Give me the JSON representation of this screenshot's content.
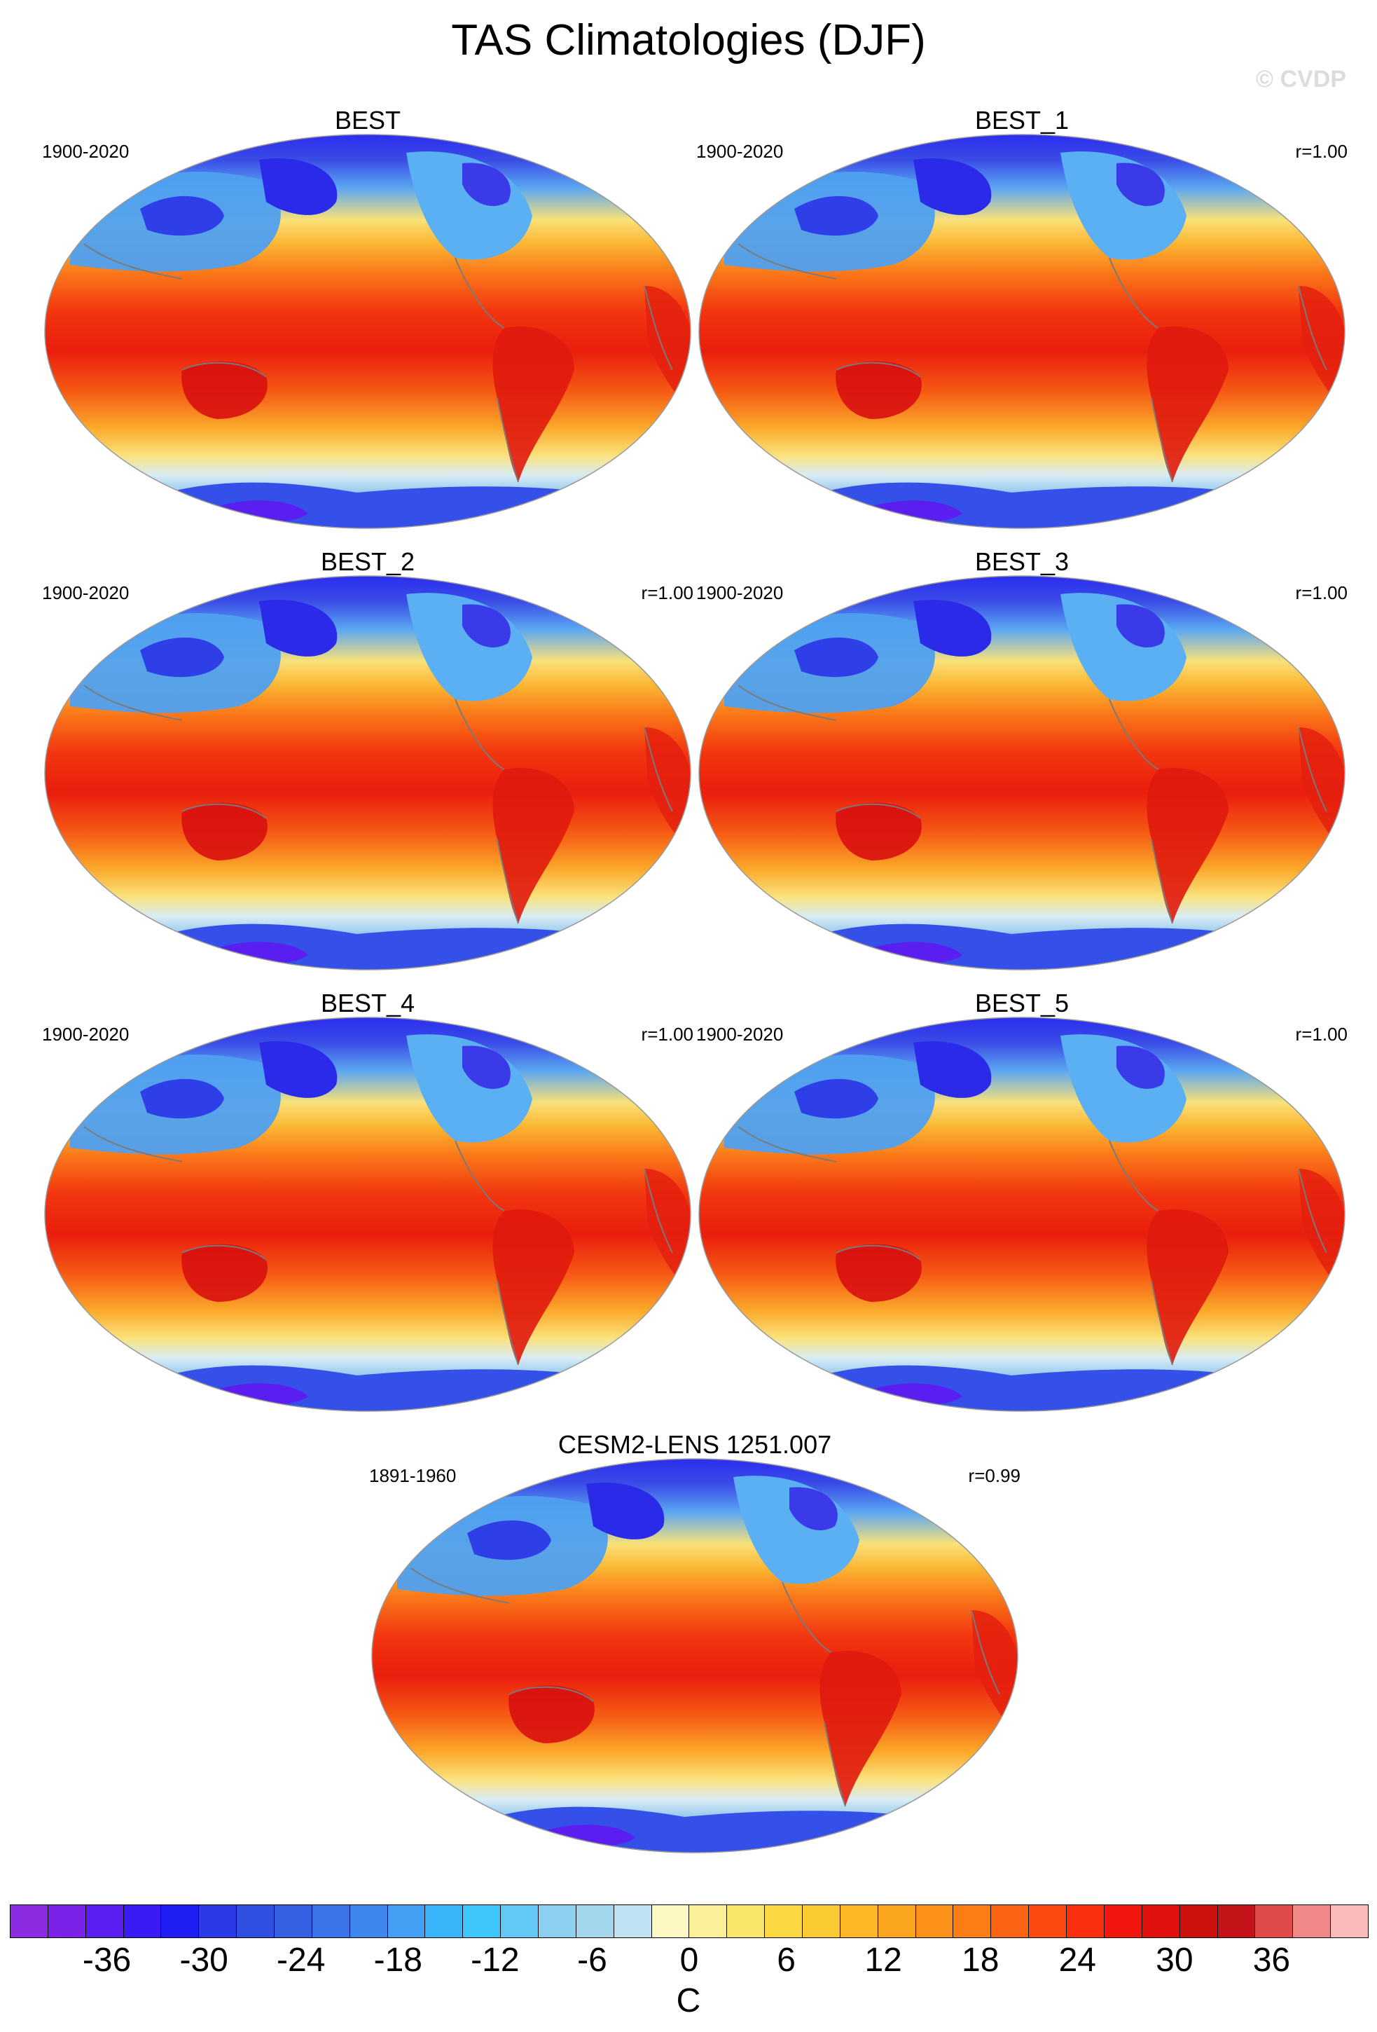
{
  "title": "TAS Climatologies (DJF)",
  "watermark": "© CVDP",
  "chart_data": [
    {
      "type": "heatmap",
      "title": "BEST",
      "years": "1900-2020",
      "r": "",
      "variable": "TAS",
      "season": "DJF",
      "units": "C"
    },
    {
      "type": "heatmap",
      "title": "BEST_1",
      "years": "1900-2020",
      "r": "r=1.00",
      "variable": "TAS",
      "season": "DJF",
      "units": "C"
    },
    {
      "type": "heatmap",
      "title": "BEST_2",
      "years": "1900-2020",
      "r": "r=1.00",
      "variable": "TAS",
      "season": "DJF",
      "units": "C"
    },
    {
      "type": "heatmap",
      "title": "BEST_3",
      "years": "1900-2020",
      "r": "r=1.00",
      "variable": "TAS",
      "season": "DJF",
      "units": "C"
    },
    {
      "type": "heatmap",
      "title": "BEST_4",
      "years": "1900-2020",
      "r": "r=1.00",
      "variable": "TAS",
      "season": "DJF",
      "units": "C"
    },
    {
      "type": "heatmap",
      "title": "BEST_5",
      "years": "1900-2020",
      "r": "r=1.00",
      "variable": "TAS",
      "season": "DJF",
      "units": "C"
    },
    {
      "type": "heatmap",
      "title": "CESM2-LENS 1251.007",
      "years": "1891-1960",
      "r": "r=0.99",
      "variable": "TAS",
      "season": "DJF",
      "units": "C"
    }
  ],
  "colorbar": {
    "units": "C",
    "range": [
      -42,
      42
    ],
    "tick_labels": [
      "-36",
      "-30",
      "-24",
      "-18",
      "-12",
      "-6",
      "0",
      "6",
      "12",
      "18",
      "24",
      "30",
      "36"
    ],
    "tick_values": [
      -36,
      -30,
      -24,
      -18,
      -12,
      -6,
      0,
      6,
      12,
      18,
      24,
      30,
      36
    ],
    "colors": [
      "#8b2be2",
      "#7a22e8",
      "#5a1ef0",
      "#3a1af5",
      "#1f1ff5",
      "#2a3ae8",
      "#2f4fe0",
      "#3560e2",
      "#3a74e8",
      "#3f86ee",
      "#44a0f5",
      "#38b4fa",
      "#3ec6fb",
      "#62c9f6",
      "#8ccfee",
      "#a4d6ee",
      "#bfe2f2",
      "#fdf8c4",
      "#fbf09a",
      "#fbe66c",
      "#fbd942",
      "#fbc932",
      "#fbb726",
      "#fba51e",
      "#fb9118",
      "#fb7d14",
      "#fb6412",
      "#fb4a10",
      "#fb2e0e",
      "#f2160e",
      "#e0100e",
      "#cc100e",
      "#c4141a",
      "#e04a4a",
      "#f08888",
      "#fbbaba"
    ]
  }
}
